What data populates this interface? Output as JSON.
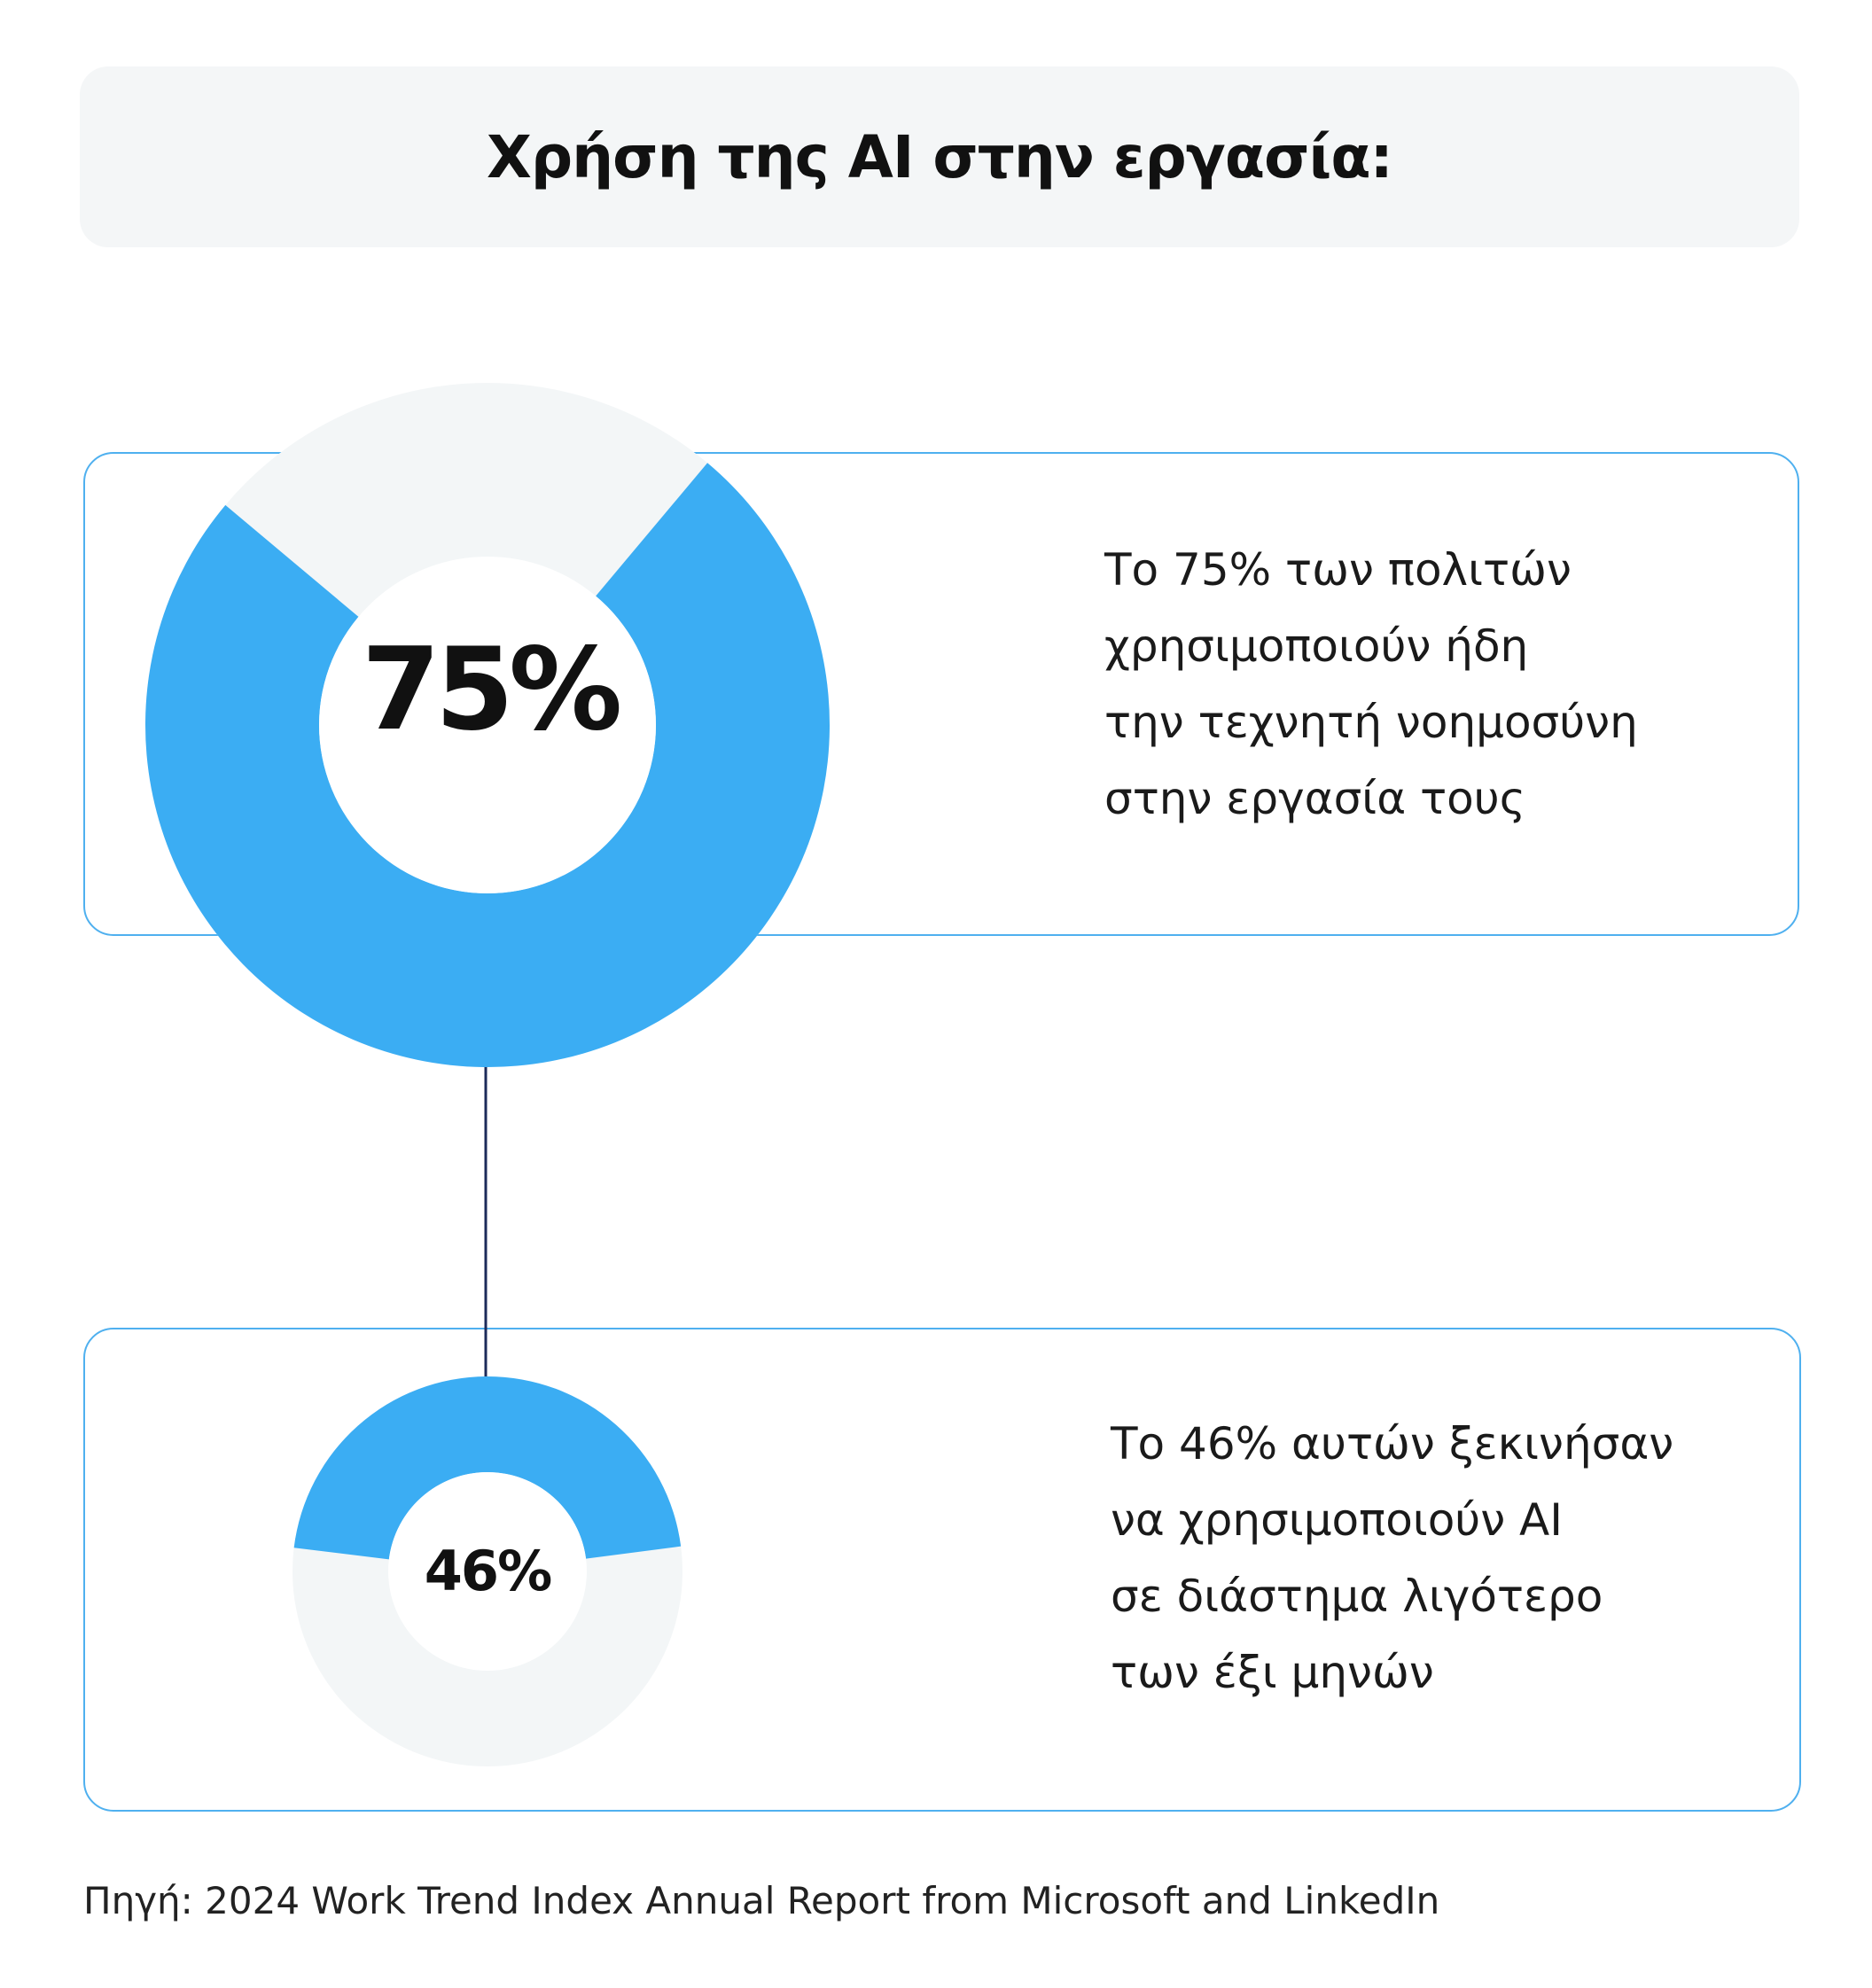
{
  "title": "Χρήση της  AI στην εργασία:",
  "chart_data": [
    {
      "type": "pie",
      "label": "75%",
      "values": [
        75,
        25
      ],
      "text_lines": [
        "Το 75% των πολιτών",
        "χρησιμοποιούν ήδη",
        "την τεχνητή νοημοσύνη",
        "στην εργασία τους"
      ]
    },
    {
      "type": "pie",
      "label": "46%",
      "values": [
        46,
        54
      ],
      "text_lines": [
        "Το 46% αυτών ξεκινήσαν",
        "να χρησιμοποιούν AI",
        "σε διάστημα λιγότερο",
        "των έξι μηνών"
      ]
    }
  ],
  "colors": {
    "filled": "#3badf3",
    "remainder": "#f3f6f7",
    "card_border": "#4fb0ef",
    "connector": "#1c2b5a"
  },
  "source": "Πηγή: 2024 Work Trend Index Annual Report from Microsoft and LinkedIn"
}
